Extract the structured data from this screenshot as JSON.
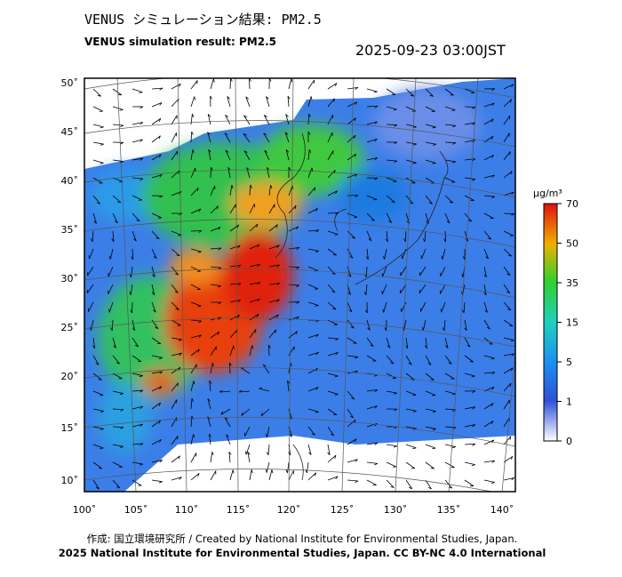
{
  "header": {
    "title": "VENUS シミュレーション結果: PM2.5",
    "subtitle": "VENUS simulation result: PM2.5",
    "timestamp": "2025-09-23 03:00JST"
  },
  "map": {
    "lat_ticks": [
      "50˚",
      "45˚",
      "40˚",
      "35˚",
      "30˚",
      "25˚",
      "20˚",
      "15˚",
      "10˚"
    ],
    "lon_ticks": [
      "100˚",
      "105˚",
      "110˚",
      "115˚",
      "120˚",
      "125˚",
      "130˚",
      "135˚",
      "140˚"
    ]
  },
  "colorbar": {
    "unit": "µg/m³",
    "ticks": [
      70,
      50,
      35,
      15,
      5,
      1,
      0
    ]
  },
  "footer": {
    "credit": "作成: 国立環境研究所 / Created by National Institute for Environmental Studies, Japan.",
    "license": "2025 National Institute for Environmental Studies, Japan. CC BY-NC 4.0 International"
  }
}
